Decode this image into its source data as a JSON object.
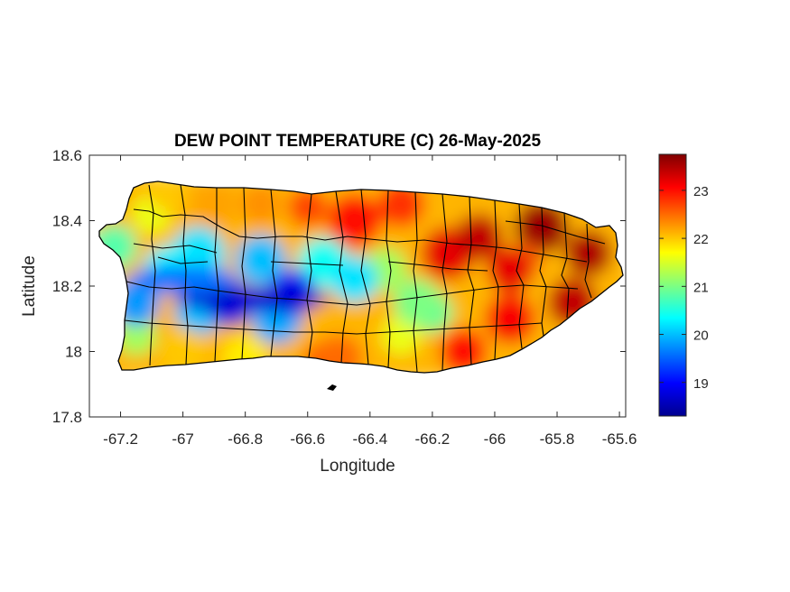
{
  "chart_data": {
    "type": "heatmap",
    "title": "DEW POINT TEMPERATURE (C) 26-May-2025",
    "xlabel": "Longitude",
    "ylabel": "Latitude",
    "xlim": [
      -67.3,
      -65.58
    ],
    "ylim": [
      17.8,
      18.6
    ],
    "xticks": [
      -67.2,
      -67,
      -66.8,
      -66.6,
      -66.4,
      -66.2,
      -66,
      -65.8,
      -65.6
    ],
    "yticks": [
      17.8,
      18,
      18.2,
      18.4,
      18.6
    ],
    "colorbar": {
      "range": [
        18.3,
        23.75
      ],
      "ticks": [
        19,
        20,
        21,
        22,
        23
      ],
      "colormap": "jet"
    },
    "field_samples": [
      {
        "lon": -67.15,
        "lat": 18.15,
        "value": 19.8
      },
      {
        "lon": -67.05,
        "lat": 18.25,
        "value": 20.3
      },
      {
        "lon": -66.85,
        "lat": 18.15,
        "value": 18.8
      },
      {
        "lon": -66.65,
        "lat": 18.18,
        "value": 18.9
      },
      {
        "lon": -66.45,
        "lat": 18.22,
        "value": 20.2
      },
      {
        "lon": -66.25,
        "lat": 18.15,
        "value": 21.0
      },
      {
        "lon": -66.05,
        "lat": 18.35,
        "value": 23.4
      },
      {
        "lon": -65.95,
        "lat": 18.25,
        "value": 23.2
      },
      {
        "lon": -65.7,
        "lat": 18.3,
        "value": 23.5
      },
      {
        "lon": -66.3,
        "lat": 18.45,
        "value": 22.8
      },
      {
        "lon": -66.9,
        "lat": 18.45,
        "value": 22.2
      },
      {
        "lon": -67.0,
        "lat": 18.0,
        "value": 22.0
      },
      {
        "lon": -66.5,
        "lat": 17.98,
        "value": 22.5
      },
      {
        "lon": -66.1,
        "lat": 18.0,
        "value": 23.0
      }
    ]
  }
}
